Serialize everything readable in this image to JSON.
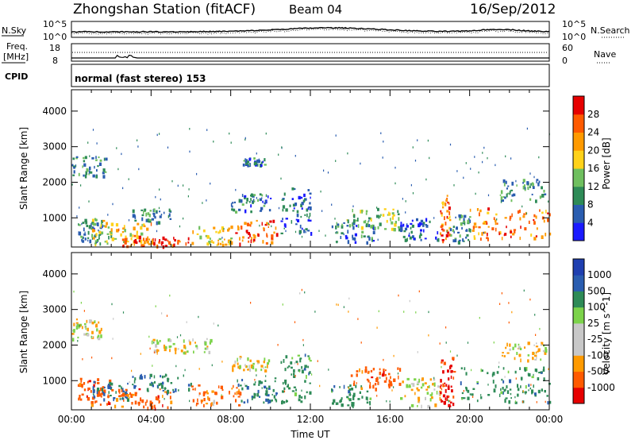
{
  "header": {
    "station": "Zhongshan Station (fitACF)",
    "beam": "Beam 04",
    "date": "16/Sep/2012"
  },
  "top_panels": {
    "nsky_label": "N.Sky",
    "nsearch_label": "N.Search",
    "freq_label_1": "Freq.",
    "freq_label_2": "[MHz]",
    "nave_label": "Nave",
    "cpid_label": "CPID",
    "cpid_text": "normal (fast stereo) 153",
    "noise_ticks": [
      "10^5",
      "10^0"
    ],
    "freq_ticks": [
      "18",
      "8"
    ],
    "nave_ticks": [
      "60",
      "0"
    ]
  },
  "colors": {
    "power_scale": [
      "#1a1aff",
      "#2a5db0",
      "#2e8b57",
      "#6fbf5f",
      "#ffd21a",
      "#ff9a00",
      "#ff5a00",
      "#e60000"
    ],
    "velocity_scale": [
      "#e60000",
      "#ff5a00",
      "#ff9a00",
      "#c8c8c8",
      "#c8c8c8",
      "#7cd34a",
      "#2e8b57",
      "#2a5db0",
      "#1f3fb0"
    ]
  },
  "chart_data": [
    {
      "type": "heatmap",
      "name": "power-panel",
      "xlabel": "",
      "ylabel": "Slant Range [km]",
      "ylim": [
        180,
        4600
      ],
      "y_ticks": [
        "4000",
        "3000",
        "2000",
        "1000"
      ],
      "colorbar_label": "Power [dB]",
      "colorbar_ticks": [
        "28",
        "24",
        "20",
        "16",
        "12",
        "8",
        "4"
      ],
      "regions": [
        {
          "t0": 0.0,
          "t1": 1.7,
          "r0": 2200,
          "r1": 2750,
          "v": 10
        },
        {
          "t0": 0.3,
          "t1": 1.5,
          "r0": 350,
          "r1": 1000,
          "v": 8
        },
        {
          "t0": 1.0,
          "t1": 2.0,
          "r0": 300,
          "r1": 1000,
          "v": 16
        },
        {
          "t0": 2.0,
          "t1": 4.0,
          "r0": 250,
          "r1": 900,
          "v": 20
        },
        {
          "t0": 2.5,
          "t1": 6.0,
          "r0": 220,
          "r1": 500,
          "v": 28
        },
        {
          "t0": 3.0,
          "t1": 5.0,
          "r0": 900,
          "r1": 1300,
          "v": 10
        },
        {
          "t0": 6.0,
          "t1": 8.0,
          "r0": 250,
          "r1": 800,
          "v": 18
        },
        {
          "t0": 8.2,
          "t1": 10.3,
          "r0": 300,
          "r1": 950,
          "v": 26
        },
        {
          "t0": 8.0,
          "t1": 10.0,
          "r0": 1200,
          "r1": 1700,
          "v": 8
        },
        {
          "t0": 8.6,
          "t1": 9.8,
          "r0": 2500,
          "r1": 2700,
          "v": 8
        },
        {
          "t0": 10.5,
          "t1": 12.0,
          "r0": 500,
          "r1": 1900,
          "v": 6
        },
        {
          "t0": 13.0,
          "t1": 15.2,
          "r0": 300,
          "r1": 900,
          "v": 8
        },
        {
          "t0": 13.8,
          "t1": 16.5,
          "r0": 700,
          "r1": 1300,
          "v": 14
        },
        {
          "t0": 16.5,
          "t1": 18.5,
          "r0": 400,
          "r1": 1000,
          "v": 6
        },
        {
          "t0": 18.5,
          "t1": 19.0,
          "r0": 300,
          "r1": 1700,
          "v": 24
        },
        {
          "t0": 19.0,
          "t1": 20.0,
          "r0": 300,
          "r1": 1100,
          "v": 10
        },
        {
          "t0": 20.0,
          "t1": 24.0,
          "r0": 400,
          "r1": 1300,
          "v": 24
        },
        {
          "t0": 21.5,
          "t1": 23.8,
          "r0": 1500,
          "r1": 2100,
          "v": 10
        }
      ]
    },
    {
      "type": "heatmap",
      "name": "velocity-panel",
      "xlabel": "Time UT",
      "ylabel": "Slant Range [km]",
      "ylim": [
        180,
        4600
      ],
      "y_ticks": [
        "4000",
        "3000",
        "2000",
        "1000"
      ],
      "x_ticks": [
        "00:00",
        "04:00",
        "08:00",
        "12:00",
        "16:00",
        "20:00",
        "00:00"
      ],
      "colorbar_label": "Velocity [m s^-1]",
      "colorbar_ticks": [
        "1000",
        "500",
        "100",
        "25",
        "-25",
        "-100",
        "-500",
        "-1000"
      ],
      "regions": [
        {
          "t0": 0.0,
          "t1": 1.7,
          "r0": 2200,
          "r1": 2750,
          "v": 0
        },
        {
          "t0": 0.3,
          "t1": 2.0,
          "r0": 350,
          "r1": 1100,
          "v": -300
        },
        {
          "t0": 1.0,
          "t1": 2.8,
          "r0": 500,
          "r1": 1000,
          "v": 600
        },
        {
          "t0": 2.0,
          "t1": 5.0,
          "r0": 250,
          "r1": 800,
          "v": -300
        },
        {
          "t0": 3.0,
          "t1": 6.0,
          "r0": 700,
          "r1": 1200,
          "v": 400
        },
        {
          "t0": 4.0,
          "t1": 7.0,
          "r0": 1800,
          "r1": 2200,
          "v": 0
        },
        {
          "t0": 6.0,
          "t1": 8.5,
          "r0": 300,
          "r1": 900,
          "v": -200
        },
        {
          "t0": 8.2,
          "t1": 10.3,
          "r0": 400,
          "r1": 1100,
          "v": 400
        },
        {
          "t0": 8.0,
          "t1": 10.0,
          "r0": 1300,
          "r1": 1700,
          "v": 0
        },
        {
          "t0": 10.5,
          "t1": 12.0,
          "r0": 400,
          "r1": 1800,
          "v": 300
        },
        {
          "t0": 13.0,
          "t1": 15.0,
          "r0": 300,
          "r1": 900,
          "v": 300
        },
        {
          "t0": 14.0,
          "t1": 16.5,
          "r0": 800,
          "r1": 1400,
          "v": -300
        },
        {
          "t0": 16.5,
          "t1": 18.5,
          "r0": 300,
          "r1": 1100,
          "v": 0
        },
        {
          "t0": 18.5,
          "t1": 19.2,
          "r0": 300,
          "r1": 1700,
          "v": -800
        },
        {
          "t0": 19.5,
          "t1": 24.0,
          "r0": 400,
          "r1": 1400,
          "v": 300
        },
        {
          "t0": 21.5,
          "t1": 23.8,
          "r0": 1600,
          "r1": 2100,
          "v": 0
        }
      ]
    }
  ]
}
